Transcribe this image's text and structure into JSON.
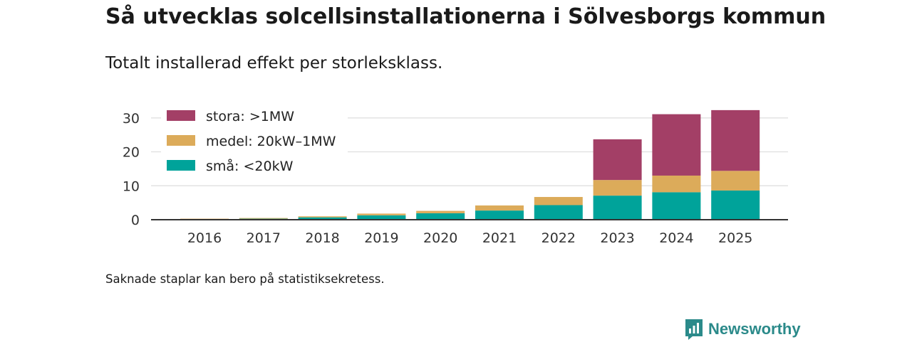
{
  "header": {
    "title": "Så utvecklas solcellsinstallationerna i Sölvesborgs kommun",
    "subtitle": "Totalt installerad effekt per storleksklass."
  },
  "footer": {
    "note": "Saknade staplar kan bero på statistiksekretess.",
    "brand": "Newsworthy"
  },
  "colors": {
    "stora": "#a33f66",
    "medel": "#dcab5a",
    "sma": "#00a39a",
    "grid": "#dddddd",
    "axis": "#333333",
    "brand": "#2b8a8a"
  },
  "chart_data": {
    "type": "bar",
    "stacked": true,
    "title": "Så utvecklas solcellsinstallationerna i Sölvesborgs kommun",
    "subtitle": "Totalt installerad effekt per storleksklass.",
    "xlabel": "",
    "ylabel": "",
    "ylim": [
      0,
      35
    ],
    "yticks": [
      0,
      10,
      20,
      30
    ],
    "grid": true,
    "legend_position": "top-left",
    "categories": [
      "2016",
      "2017",
      "2018",
      "2019",
      "2020",
      "2021",
      "2022",
      "2023",
      "2024",
      "2025"
    ],
    "series": [
      {
        "name": "små: <20kW",
        "key": "sma",
        "values": [
          0.2,
          0.3,
          0.7,
          1.3,
          1.9,
          2.7,
          4.3,
          7.1,
          8.1,
          8.6
        ]
      },
      {
        "name": "medel: 20kW–1MW",
        "key": "medel",
        "values": [
          0.1,
          0.2,
          0.3,
          0.5,
          0.7,
          1.5,
          2.4,
          4.6,
          4.9,
          5.8
        ]
      },
      {
        "name": "stora: >1MW",
        "key": "stora",
        "values": [
          0,
          0,
          0,
          0,
          0,
          0,
          0,
          12.0,
          18.1,
          17.9
        ]
      }
    ],
    "legend": [
      "stora: >1MW",
      "medel: 20kW–1MW",
      "små: <20kW"
    ]
  }
}
